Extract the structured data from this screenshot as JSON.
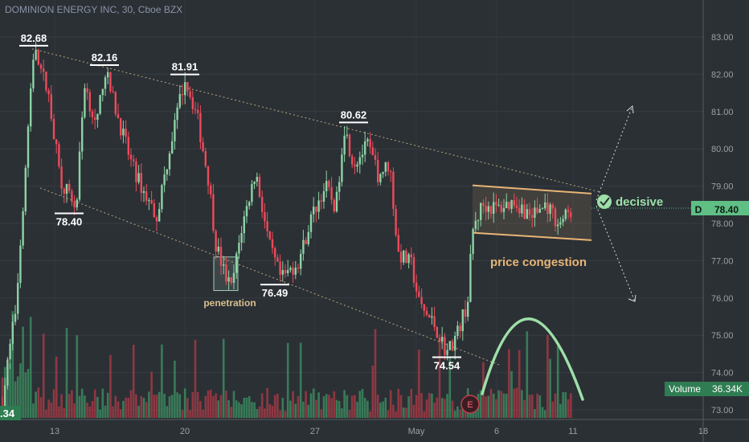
{
  "header": {
    "title": "DOMINION ENERGY INC, 30, Cboe BZX"
  },
  "colors": {
    "background": "#2b3035",
    "up": "#8dd3a5",
    "down": "#ec4b5a",
    "vol_up": "#3c8f61",
    "vol_down": "#a83b46",
    "trendline": "#b8a67a",
    "congestion": "#e8b577",
    "arc": "#9ee0a8",
    "axis_text": "#9aa0a6"
  },
  "chart_data": {
    "type": "candlestick",
    "title": "DOMINION ENERGY INC, 30, Cboe BZX",
    "y_ticks": [
      "73.00",
      "74.00",
      "75.00",
      "76.00",
      "77.00",
      "78.00",
      "79.00",
      "80.00",
      "81.00",
      "82.00",
      "83.00"
    ],
    "ylim": [
      72.9,
      83.2
    ],
    "x_ticks": [
      "13",
      "20",
      "27",
      "May",
      "6",
      "11",
      "18"
    ],
    "peaks": [
      {
        "label": "82.68",
        "value": 82.68
      },
      {
        "label": "82.16",
        "value": 82.16
      },
      {
        "label": "81.91",
        "value": 81.91
      },
      {
        "label": "80.62",
        "value": 80.62
      }
    ],
    "troughs": [
      {
        "label": "78.40",
        "value": 78.4
      },
      {
        "label": "76.49",
        "value": 76.49
      },
      {
        "label": "74.54",
        "value": 74.54
      }
    ],
    "annotations": {
      "penetration": "penetration",
      "congestion": "price congestion",
      "decisive": "decisive",
      "earnings": "E"
    },
    "last_price": {
      "symbol": "D",
      "value": "78.40"
    },
    "volume": {
      "label": "Volume",
      "value": "36.34K",
      "left_value": ".34"
    },
    "grid": true
  }
}
